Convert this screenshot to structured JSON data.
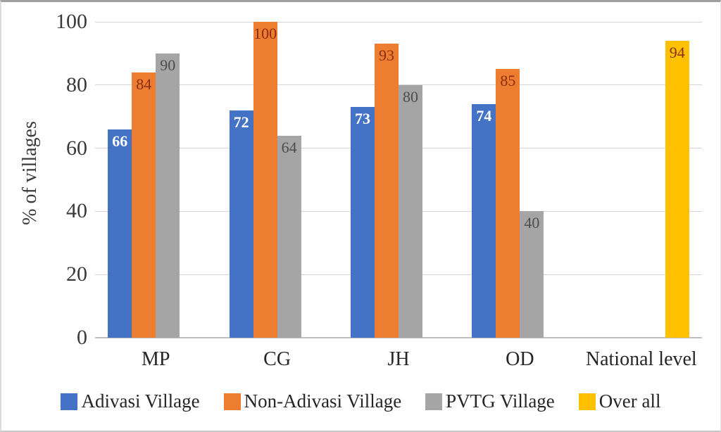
{
  "chart_data": {
    "type": "bar",
    "title": "",
    "xlabel": "",
    "ylabel": "% of villages",
    "ylim": [
      0,
      100
    ],
    "yticks": [
      0,
      20,
      40,
      60,
      80,
      100
    ],
    "grid": true,
    "legend_position": "bottom",
    "categories": [
      "MP",
      "CG",
      "JH",
      "OD",
      "National level"
    ],
    "series": [
      {
        "name": "Adivasi Village",
        "color": "#4472C4",
        "label_color": "#FFFFFF",
        "label_bold": true,
        "values": [
          66,
          72,
          73,
          74,
          null
        ]
      },
      {
        "name": "Non-Adivasi Village",
        "color": "#ED7D31",
        "label_color": "#8B2E11",
        "label_bold": false,
        "values": [
          84,
          100,
          93,
          85,
          null
        ]
      },
      {
        "name": "PVTG Village",
        "color": "#A5A5A5",
        "label_color": "#4D4D4D",
        "label_bold": false,
        "values": [
          90,
          64,
          80,
          40,
          null
        ]
      },
      {
        "name": "Over all",
        "color": "#FFC000",
        "label_color": "#8B2E11",
        "label_bold": false,
        "values": [
          null,
          null,
          null,
          null,
          94
        ]
      }
    ]
  }
}
